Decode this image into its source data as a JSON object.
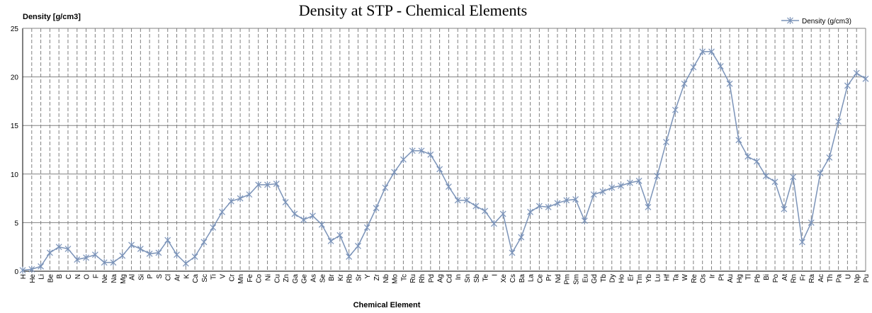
{
  "chart_data": {
    "type": "line",
    "title": "Density at STP - Chemical Elements",
    "xlabel": "Chemical Element",
    "ylabel": "Density [g/cm3]",
    "ylim": [
      0,
      25
    ],
    "yticks": [
      0,
      5,
      10,
      15,
      20,
      25
    ],
    "grid": {
      "horizontal": true,
      "vertical": true,
      "vertical_style": "dashed"
    },
    "legend_position": "top-right",
    "colors": {
      "series": "#7b93b8",
      "grid": "#808080",
      "axis": "#000000"
    },
    "categories": [
      "H",
      "He",
      "Li",
      "Be",
      "B",
      "C",
      "N",
      "O",
      "F",
      "Ne",
      "Na",
      "Mg",
      "Al",
      "Si",
      "P",
      "S",
      "Cl",
      "Ar",
      "K",
      "Ca",
      "Sc",
      "Ti",
      "V",
      "Cr",
      "Mn",
      "Fe",
      "Co",
      "Ni",
      "Cu",
      "Zn",
      "Ga",
      "Ge",
      "As",
      "Se",
      "Br",
      "Kr",
      "Rb",
      "Sr",
      "Y",
      "Zr",
      "Nb",
      "Mo",
      "Tc",
      "Ru",
      "Rh",
      "Pd",
      "Ag",
      "Cd",
      "In",
      "Sn",
      "Sb",
      "Te",
      "I",
      "Xe",
      "Cs",
      "Ba",
      "La",
      "Ce",
      "Pr",
      "Nd",
      "Pm",
      "Sm",
      "Eu",
      "Gd",
      "Tb",
      "Dy",
      "Ho",
      "Er",
      "Tm",
      "Yb",
      "Lu",
      "Hf",
      "Ta",
      "W",
      "Re",
      "Os",
      "Ir",
      "Pt",
      "Au",
      "Hg",
      "Tl",
      "Pb",
      "Bi",
      "Po",
      "At",
      "Rn",
      "Fr",
      "Ra",
      "Ac",
      "Th",
      "Pa",
      "U",
      "Np",
      "Pu"
    ],
    "series": [
      {
        "name": "Density (g/cm3)",
        "values": [
          0.1,
          0.2,
          0.5,
          1.9,
          2.5,
          2.3,
          1.2,
          1.4,
          1.7,
          0.9,
          0.9,
          1.6,
          2.7,
          2.3,
          1.8,
          1.9,
          3.2,
          1.7,
          0.8,
          1.5,
          3.0,
          4.5,
          6.1,
          7.2,
          7.5,
          7.9,
          8.9,
          8.9,
          9.0,
          7.1,
          5.9,
          5.3,
          5.7,
          4.8,
          3.1,
          3.7,
          1.5,
          2.6,
          4.5,
          6.5,
          8.6,
          10.2,
          11.5,
          12.4,
          12.4,
          12.0,
          10.5,
          8.7,
          7.3,
          7.3,
          6.7,
          6.2,
          4.9,
          5.9,
          1.9,
          3.5,
          6.1,
          6.7,
          6.6,
          7.0,
          7.3,
          7.4,
          5.2,
          7.9,
          8.2,
          8.6,
          8.8,
          9.1,
          9.3,
          6.6,
          9.8,
          13.3,
          16.6,
          19.3,
          21.0,
          22.6,
          22.6,
          21.1,
          19.3,
          13.5,
          11.8,
          11.3,
          9.8,
          9.2,
          6.4,
          9.7,
          3.0,
          5.0,
          10.1,
          11.7,
          15.4,
          19.1,
          20.4,
          19.8
        ]
      }
    ]
  }
}
